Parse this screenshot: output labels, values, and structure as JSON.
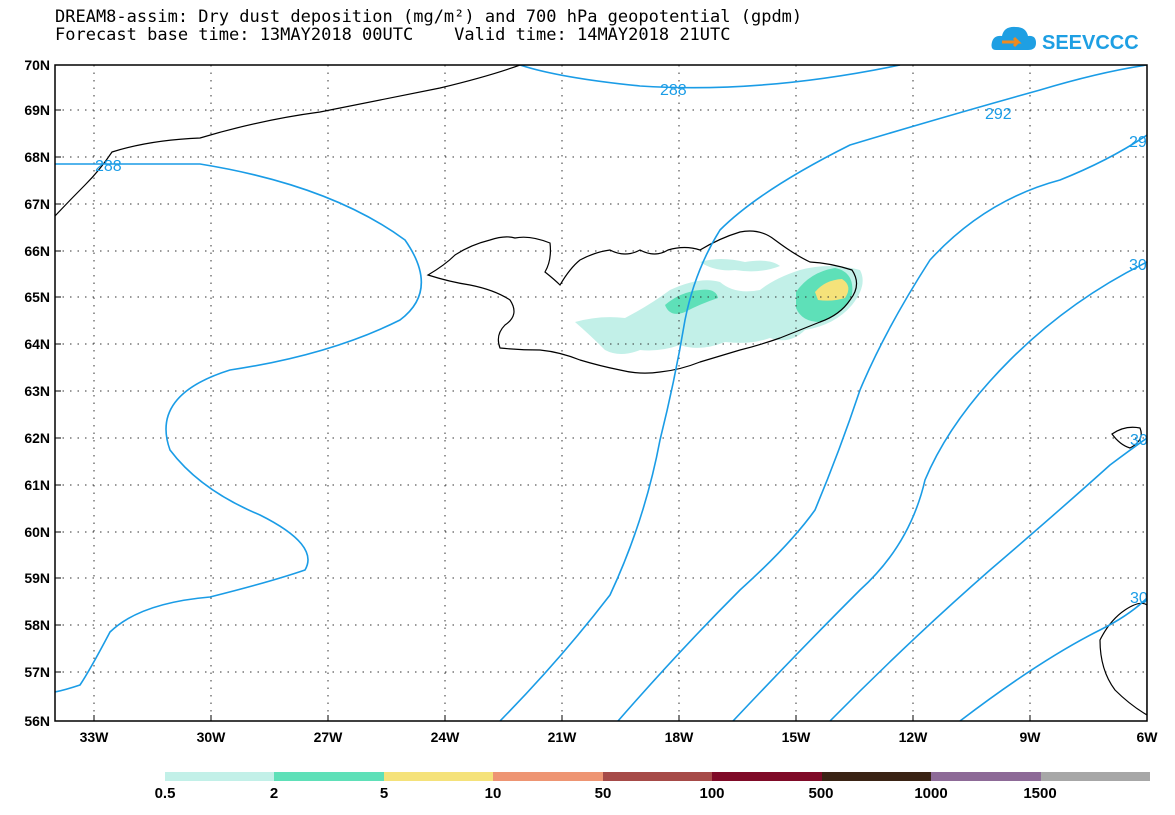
{
  "header": {
    "title_line1": "DREAM8-assim: Dry dust deposition (mg/m²) and 700 hPa geopotential (gpdm)",
    "title_line2": "Forecast base time: 13MAY2018 00UTC    Valid time: 14MAY2018 21UTC",
    "logo_text": "SEEVCCC"
  },
  "map": {
    "lat_labels": [
      "70N",
      "69N",
      "68N",
      "67N",
      "66N",
      "65N",
      "64N",
      "63N",
      "62N",
      "61N",
      "60N",
      "59N",
      "58N",
      "57N",
      "56N"
    ],
    "lon_labels": [
      "33W",
      "30W",
      "27W",
      "24W",
      "21W",
      "18W",
      "15W",
      "12W",
      "9W",
      "6W"
    ],
    "contour_labels": [
      "288",
      "288",
      "292",
      "29",
      "30",
      "30",
      "30"
    ],
    "contour_color": "#1a9ce6"
  },
  "colorbar": {
    "colors": [
      "#c2f0e8",
      "#5ee0b8",
      "#f5e27a",
      "#ee9573",
      "#a64a48",
      "#7f0a27",
      "#3a2314",
      "#8d6a97",
      "#a7a7a7"
    ],
    "labels": [
      "0.5",
      "2",
      "5",
      "10",
      "50",
      "100",
      "500",
      "1000",
      "1500"
    ]
  }
}
